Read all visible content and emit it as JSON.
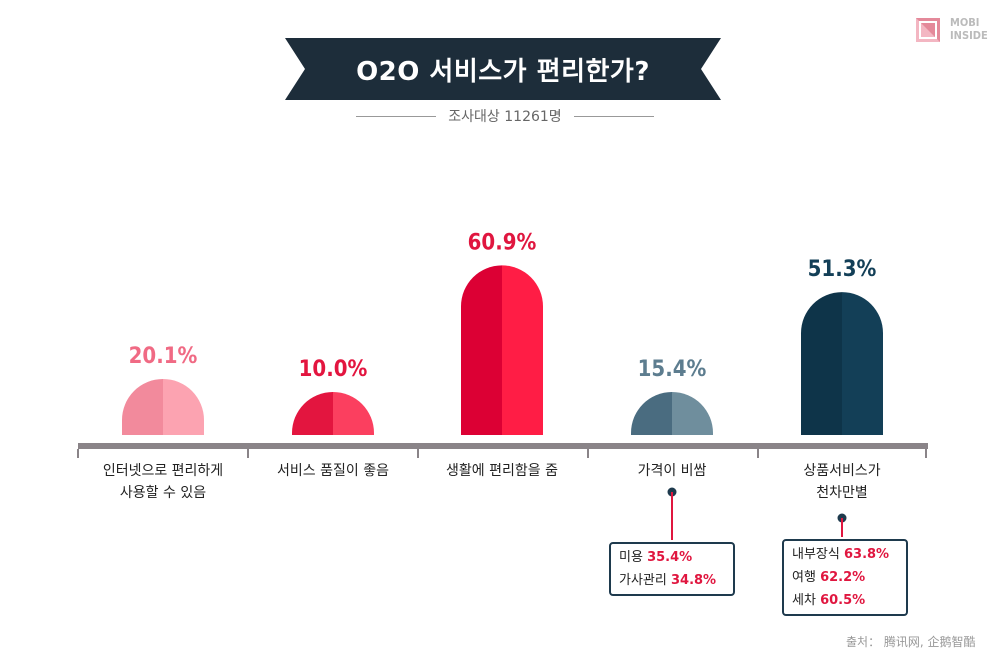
{
  "title": "O2O 서비스가 편리한가?",
  "subtitle": "조사대상 11261명",
  "logo": {
    "line1": "MOBI",
    "line2": "INSIDE",
    "icon": "mobi-inside-logo-icon"
  },
  "chart_data": {
    "type": "bar",
    "title": "O2O 서비스가 편리한가?",
    "categories": [
      "인터넷으로 편리하게 사용할 수 있음",
      "서비스 품질이 좋음",
      "생활에 편리함을 줌",
      "가격이 비쌈",
      "상품서비스가 천차만별"
    ],
    "category_lines": [
      [
        "인터넷으로 편리하게",
        "사용할 수 있음"
      ],
      [
        "서비스 품질이 좋음"
      ],
      [
        "생활에 편리함을 줌"
      ],
      [
        "가격이 비쌈"
      ],
      [
        "상품서비스가",
        "천차만별"
      ]
    ],
    "values": [
      20.1,
      10.0,
      60.9,
      15.4,
      51.3
    ],
    "value_labels": [
      "20.1%",
      "10.0%",
      "60.9%",
      "15.4%",
      "51.3%"
    ],
    "ylim": [
      0,
      70
    ],
    "colors": [
      {
        "left": "#f28a9c",
        "right": "#fca3b1",
        "label": "#f06a84"
      },
      {
        "left": "#e3153f",
        "right": "#fb3f5f",
        "label": "#e3153f"
      },
      {
        "left": "#dc0034",
        "right": "#ff1d45",
        "label": "#e0163f"
      },
      {
        "left": "#4a6c80",
        "right": "#6f8e9d",
        "label": "#5d7d8f"
      },
      {
        "left": "#0e3449",
        "right": "#133f57",
        "label": "#133f57"
      }
    ],
    "annotations": [
      {
        "category": "가격이 비쌈",
        "items": [
          {
            "label": "미용",
            "value": "35.4%"
          },
          {
            "label": "가사관리",
            "value": "34.8%"
          }
        ]
      },
      {
        "category": "상품서비스가 천차만별",
        "items": [
          {
            "label": "내부장식",
            "value": "63.8%"
          },
          {
            "label": "여행",
            "value": "62.2%"
          },
          {
            "label": "세차",
            "value": "60.5%"
          }
        ]
      }
    ]
  },
  "annotation_boxes": {
    "price": {
      "items": [
        {
          "label": "미용",
          "value": "35.4%"
        },
        {
          "label": "가사관리",
          "value": "34.8%"
        }
      ]
    },
    "variety": {
      "items": [
        {
          "label": "내부장식",
          "value": "63.8%"
        },
        {
          "label": "여행",
          "value": "62.2%"
        },
        {
          "label": "세차",
          "value": "60.5%"
        }
      ]
    }
  },
  "source": "출처： 腾讯网, 企鹅智酷",
  "colors": {
    "banner": "#1d2d3a",
    "axis": "#8a8488"
  }
}
